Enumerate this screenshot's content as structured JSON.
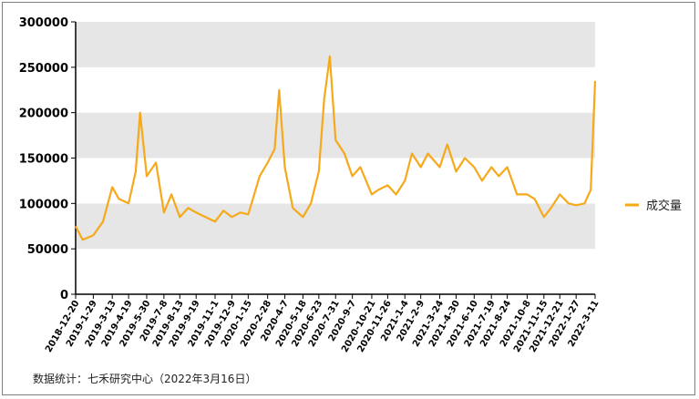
{
  "chart_data": {
    "type": "line",
    "title": "",
    "xlabel": "",
    "ylabel": "",
    "ylim": [
      0,
      300000
    ],
    "y_ticks": [
      0,
      50000,
      100000,
      150000,
      200000,
      250000,
      300000
    ],
    "y_tick_labels": [
      "0",
      "50000",
      "100000",
      "150000",
      "200000",
      "250000",
      "300000"
    ],
    "x_tick_labels": [
      "2018-12-20",
      "2019-1-29",
      "2019-3-13",
      "2019-4-19",
      "2019-5-30",
      "2019-7-8",
      "2019-8-13",
      "2019-9-19",
      "2019-11-1",
      "2019-12-9",
      "2020-1-15",
      "2020-2-28",
      "2020-4-7",
      "2020-5-18",
      "2020-6-23",
      "2020-7-31",
      "2020-9-7",
      "2020-10-21",
      "2020-11-26",
      "2021-1-4",
      "2021-2-9",
      "2021-3-24",
      "2021-4-30",
      "2021-6-10",
      "2021-7-19",
      "2021-8-24",
      "2021-10-8",
      "2021-11-15",
      "2021-12-21",
      "2022-1-27",
      "2022-3-11"
    ],
    "grid": "horizontal-bands",
    "legend": {
      "position": "right",
      "entries": [
        "成交量"
      ]
    },
    "series": [
      {
        "name": "成交量",
        "color": "#f5a91b",
        "x": [
          "2018-12-20",
          "2019-1-5",
          "2019-1-29",
          "2019-2-20",
          "2019-3-13",
          "2019-3-28",
          "2019-4-19",
          "2019-5-5",
          "2019-5-15",
          "2019-5-30",
          "2019-6-20",
          "2019-7-8",
          "2019-7-25",
          "2019-8-13",
          "2019-9-1",
          "2019-9-19",
          "2019-10-10",
          "2019-11-1",
          "2019-11-20",
          "2019-12-9",
          "2019-12-28",
          "2020-1-15",
          "2020-2-10",
          "2020-2-28",
          "2020-3-15",
          "2020-3-25",
          "2020-4-7",
          "2020-4-25",
          "2020-5-18",
          "2020-6-5",
          "2020-6-23",
          "2020-7-5",
          "2020-7-18",
          "2020-7-31",
          "2020-8-20",
          "2020-9-7",
          "2020-9-25",
          "2020-10-21",
          "2020-11-5",
          "2020-11-26",
          "2020-12-15",
          "2021-1-4",
          "2021-1-20",
          "2021-2-9",
          "2021-2-25",
          "2021-3-24",
          "2021-4-10",
          "2021-4-30",
          "2021-5-20",
          "2021-6-10",
          "2021-6-28",
          "2021-7-19",
          "2021-8-5",
          "2021-8-24",
          "2021-9-15",
          "2021-10-8",
          "2021-10-25",
          "2021-11-15",
          "2021-12-1",
          "2021-12-21",
          "2022-1-10",
          "2022-1-27",
          "2022-2-15",
          "2022-3-1",
          "2022-3-11"
        ],
        "values": [
          75000,
          60000,
          65000,
          80000,
          118000,
          105000,
          100000,
          135000,
          200000,
          130000,
          145000,
          90000,
          110000,
          85000,
          95000,
          90000,
          85000,
          80000,
          92000,
          85000,
          90000,
          88000,
          130000,
          145000,
          160000,
          225000,
          140000,
          95000,
          85000,
          100000,
          135000,
          215000,
          262000,
          170000,
          155000,
          130000,
          140000,
          110000,
          115000,
          120000,
          110000,
          125000,
          155000,
          140000,
          155000,
          140000,
          165000,
          135000,
          150000,
          140000,
          125000,
          140000,
          130000,
          140000,
          110000,
          110000,
          105000,
          85000,
          95000,
          110000,
          100000,
          98000,
          100000,
          115000,
          235000
        ]
      }
    ]
  },
  "source_note": "数据统计：七禾研究中心（2022年3月16日）"
}
